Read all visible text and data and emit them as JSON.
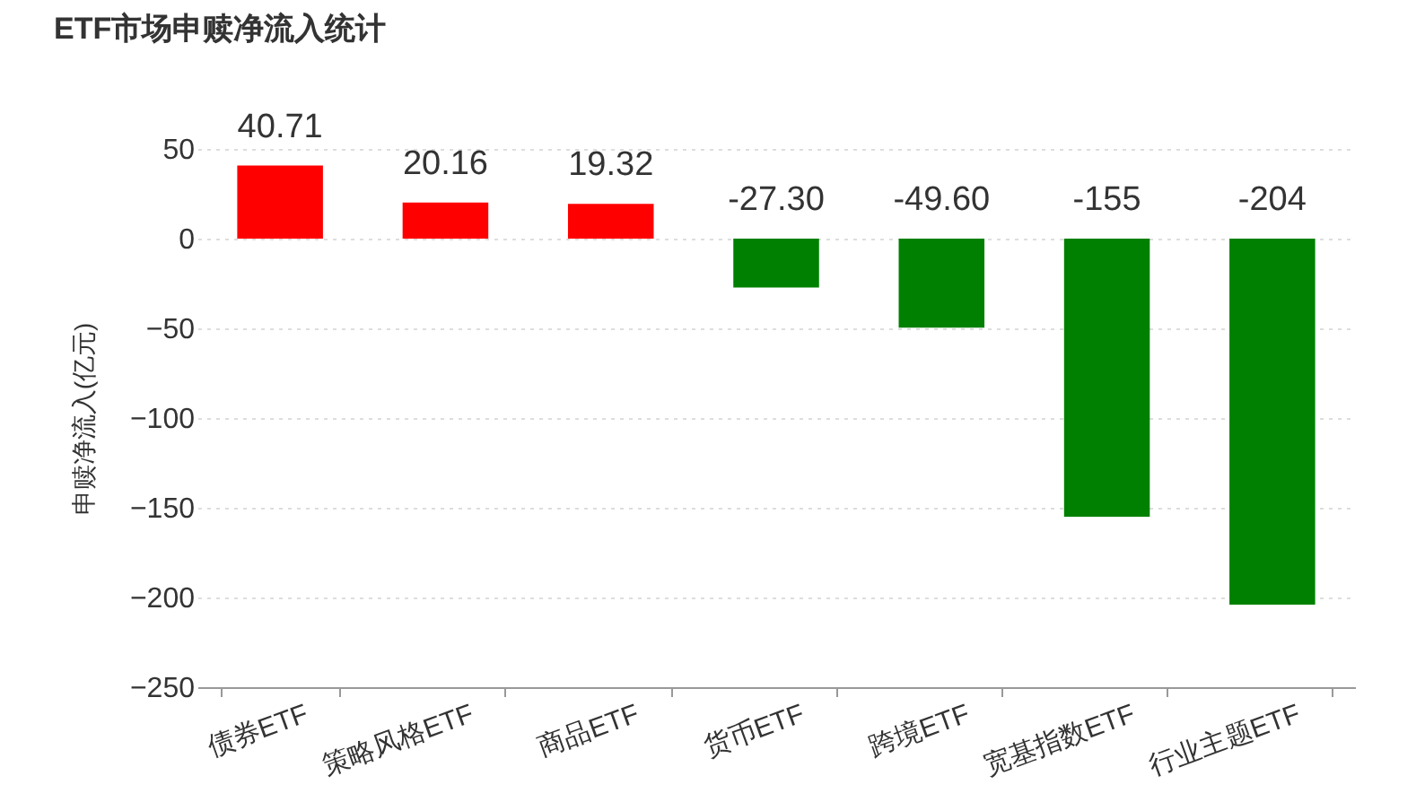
{
  "chart_data": {
    "type": "bar",
    "title": "ETF市场申赎净流入统计",
    "ylabel": "申赎净流入(亿元)",
    "categories": [
      "债券ETF",
      "策略风格ETF",
      "商品ETF",
      "货币ETF",
      "跨境ETF",
      "宽基指数ETF",
      "行业主题ETF"
    ],
    "values": [
      40.71,
      20.16,
      19.32,
      -27.3,
      -49.6,
      -155,
      -204
    ],
    "colors": [
      "#ff0000",
      "#ff0000",
      "#ff0000",
      "#008000",
      "#008000",
      "#008000",
      "#008000"
    ],
    "value_labels": [
      "40.71",
      "20.16",
      "19.32",
      "-27.30",
      "-49.60",
      "-155",
      "-204"
    ],
    "ylim": [
      -250,
      50
    ],
    "yticks": [
      -250,
      -200,
      -150,
      -100,
      -50,
      0,
      50
    ],
    "grid": "y"
  }
}
